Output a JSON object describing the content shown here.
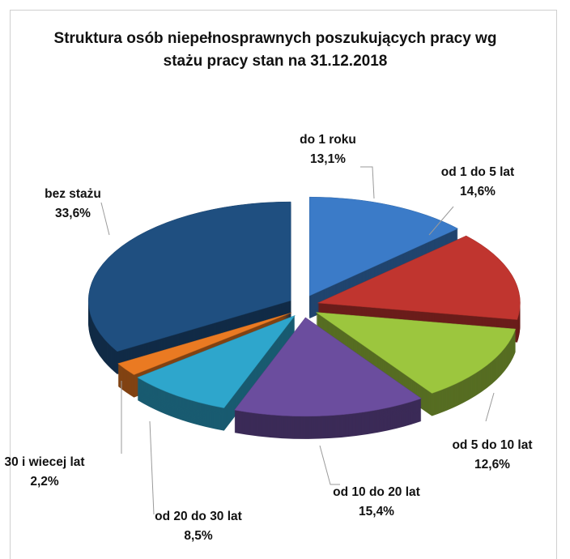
{
  "chart_data": {
    "type": "pie",
    "title": "Struktura osób niepełnosprawnych poszukujących pracy wg  stażu pracy stan na 31.12.2018",
    "categories": [
      "do 1 roku",
      "od 1 do 5 lat",
      "od 5 do 10 lat",
      "od 10 do 20 lat",
      "od 20 do 30 lat",
      "30 i wiecej lat",
      "bez stażu"
    ],
    "values": [
      13.1,
      14.6,
      12.6,
      15.4,
      8.5,
      2.2,
      33.6
    ],
    "value_labels": [
      "13,1%",
      "14,6%",
      "12,6%",
      "15,4%",
      "8,5%",
      "2,2%",
      "33,6%"
    ],
    "colors": [
      "#3b7bc8",
      "#c0352f",
      "#9cc63e",
      "#6b4d9e",
      "#2ea6cc",
      "#ea7a22",
      "#1f4f80"
    ]
  }
}
